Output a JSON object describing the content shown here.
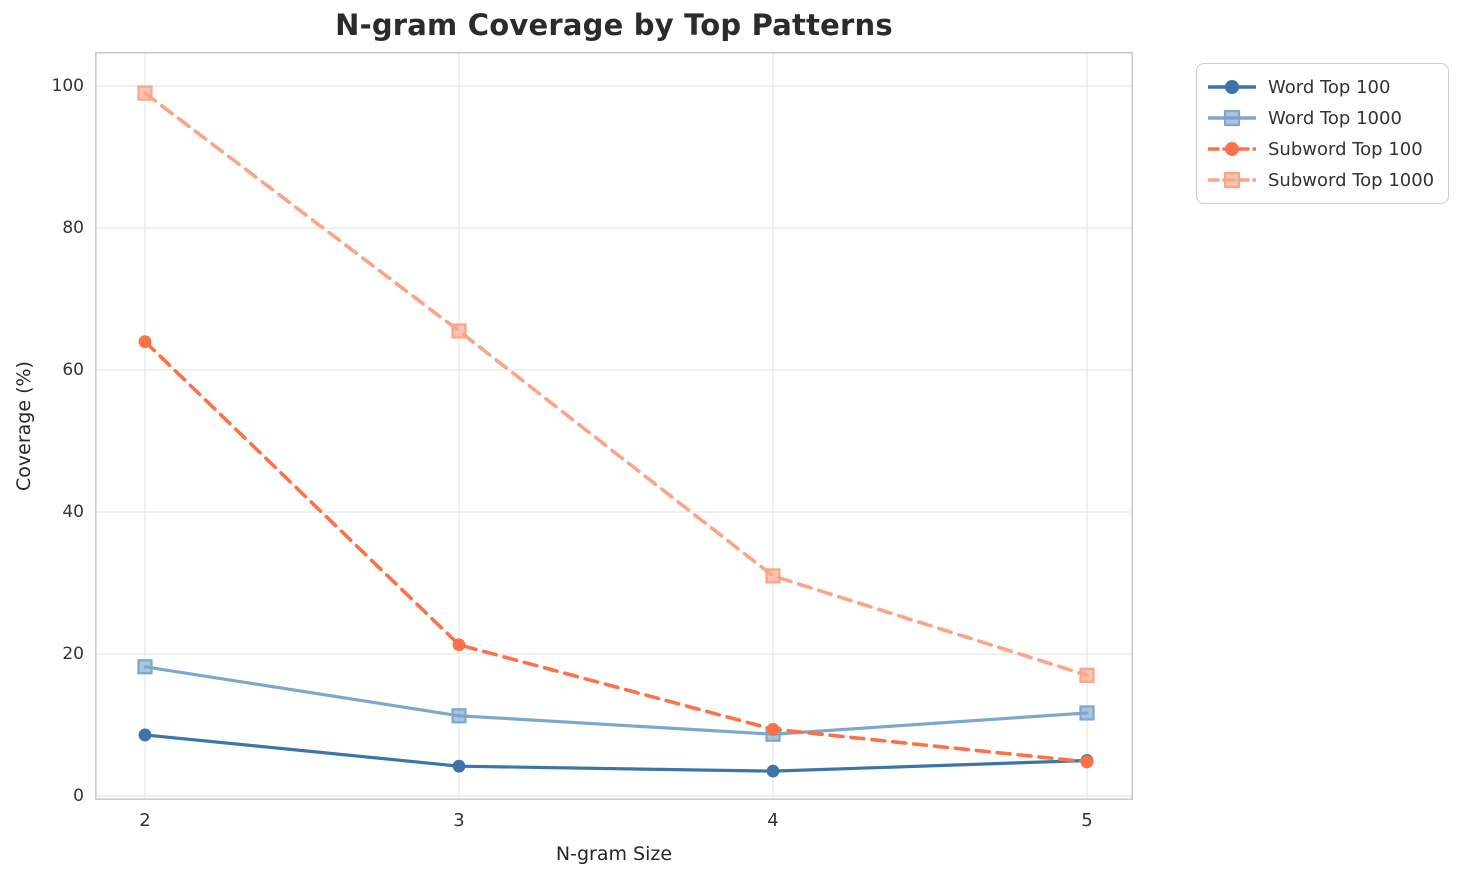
{
  "title": "N-gram Coverage by Top Patterns",
  "chart_data": {
    "type": "line",
    "title": "N-gram Coverage by Top Patterns",
    "xlabel": "N-gram Size",
    "ylabel": "Coverage (%)",
    "x": [
      2,
      3,
      4,
      5
    ],
    "xticks": [
      "2",
      "3",
      "4",
      "5"
    ],
    "yticks": [
      0,
      20,
      40,
      60,
      80,
      100
    ],
    "ylim": [
      0,
      104
    ],
    "grid": true,
    "legend_position": "outside-upper-right",
    "series": [
      {
        "name": "Word Top 100",
        "values": [
          8.6,
          4.2,
          3.5,
          5.0
        ],
        "color": "#3c76a8",
        "marker": "circle",
        "line_style": "solid"
      },
      {
        "name": "Word Top 1000",
        "values": [
          18.2,
          11.3,
          8.7,
          11.7
        ],
        "color": "#7da7cd",
        "marker": "square",
        "line_style": "solid"
      },
      {
        "name": "Subword Top 100",
        "values": [
          64.0,
          21.3,
          9.4,
          4.8
        ],
        "color": "#fc7148",
        "marker": "circle",
        "line_style": "dashed"
      },
      {
        "name": "Subword Top 1000",
        "values": [
          99.0,
          65.5,
          31.0,
          17.0
        ],
        "color": "#fba488",
        "marker": "square",
        "line_style": "dashed"
      }
    ]
  },
  "style": {
    "grid_color": "#ebebeb",
    "spine_color": "#cccccc",
    "text_color": "#333333"
  }
}
